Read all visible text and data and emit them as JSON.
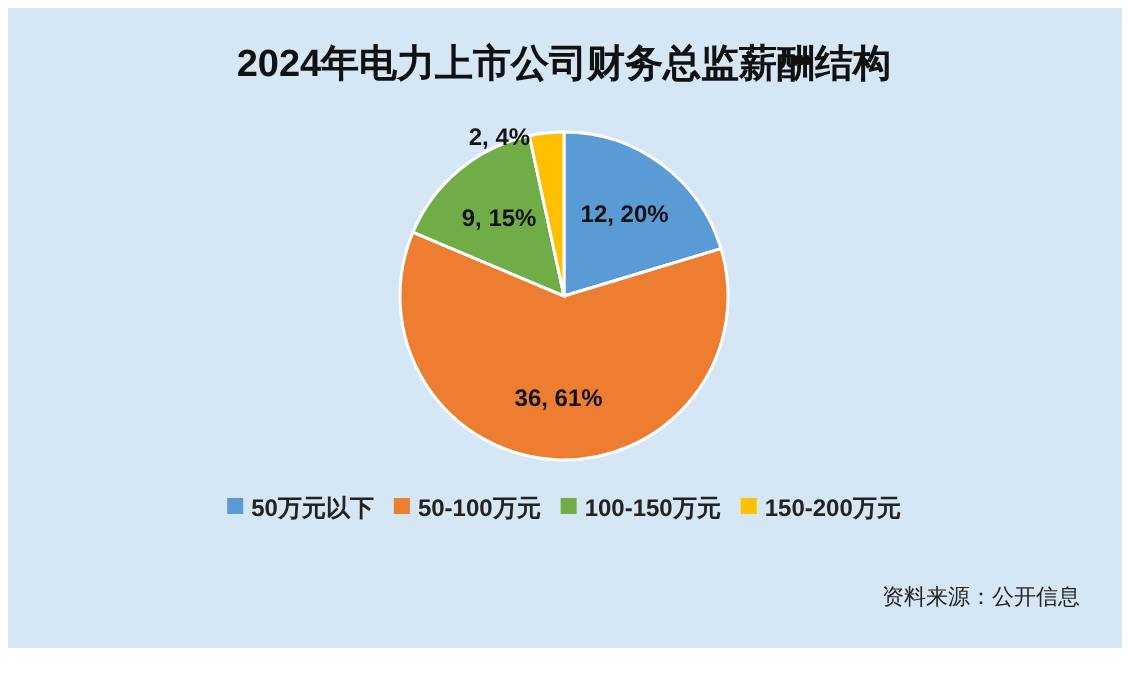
{
  "chart_data": {
    "type": "pie",
    "title": "2024年电力上市公司财务总监薪酬结构",
    "categories": [
      "50万元以下",
      "50-100万元",
      "100-150万元",
      "150-200万元"
    ],
    "values": [
      12,
      36,
      9,
      2
    ],
    "colors": [
      "#5b9bd5",
      "#ed7d31",
      "#70ad47",
      "#ffc000"
    ],
    "value_labels": [
      "12, 20%",
      "36, 61%",
      "9, 15%",
      "2, 4%"
    ],
    "legend": "bottom",
    "annotations": [
      "资料来源：公开信息"
    ]
  }
}
